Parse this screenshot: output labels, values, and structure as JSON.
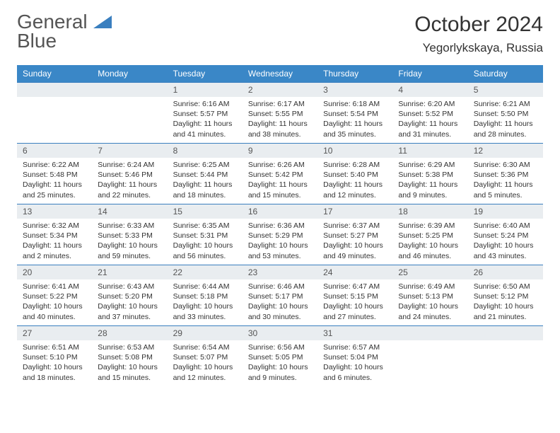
{
  "logo": {
    "text1": "General",
    "text2": "Blue"
  },
  "title": "October 2024",
  "location": "Yegorlykskaya, Russia",
  "colors": {
    "header_bg": "#3a87c7",
    "row_accent": "#3a7fbf",
    "daynum_bg": "#e9edf0",
    "text": "#333333",
    "logo_gray": "#555555"
  },
  "weekdays": [
    "Sunday",
    "Monday",
    "Tuesday",
    "Wednesday",
    "Thursday",
    "Friday",
    "Saturday"
  ],
  "weeks": [
    [
      null,
      null,
      {
        "d": "1",
        "sr": "6:16 AM",
        "ss": "5:57 PM",
        "dl": "11 hours and 41 minutes."
      },
      {
        "d": "2",
        "sr": "6:17 AM",
        "ss": "5:55 PM",
        "dl": "11 hours and 38 minutes."
      },
      {
        "d": "3",
        "sr": "6:18 AM",
        "ss": "5:54 PM",
        "dl": "11 hours and 35 minutes."
      },
      {
        "d": "4",
        "sr": "6:20 AM",
        "ss": "5:52 PM",
        "dl": "11 hours and 31 minutes."
      },
      {
        "d": "5",
        "sr": "6:21 AM",
        "ss": "5:50 PM",
        "dl": "11 hours and 28 minutes."
      }
    ],
    [
      {
        "d": "6",
        "sr": "6:22 AM",
        "ss": "5:48 PM",
        "dl": "11 hours and 25 minutes."
      },
      {
        "d": "7",
        "sr": "6:24 AM",
        "ss": "5:46 PM",
        "dl": "11 hours and 22 minutes."
      },
      {
        "d": "8",
        "sr": "6:25 AM",
        "ss": "5:44 PM",
        "dl": "11 hours and 18 minutes."
      },
      {
        "d": "9",
        "sr": "6:26 AM",
        "ss": "5:42 PM",
        "dl": "11 hours and 15 minutes."
      },
      {
        "d": "10",
        "sr": "6:28 AM",
        "ss": "5:40 PM",
        "dl": "11 hours and 12 minutes."
      },
      {
        "d": "11",
        "sr": "6:29 AM",
        "ss": "5:38 PM",
        "dl": "11 hours and 9 minutes."
      },
      {
        "d": "12",
        "sr": "6:30 AM",
        "ss": "5:36 PM",
        "dl": "11 hours and 5 minutes."
      }
    ],
    [
      {
        "d": "13",
        "sr": "6:32 AM",
        "ss": "5:34 PM",
        "dl": "11 hours and 2 minutes."
      },
      {
        "d": "14",
        "sr": "6:33 AM",
        "ss": "5:33 PM",
        "dl": "10 hours and 59 minutes."
      },
      {
        "d": "15",
        "sr": "6:35 AM",
        "ss": "5:31 PM",
        "dl": "10 hours and 56 minutes."
      },
      {
        "d": "16",
        "sr": "6:36 AM",
        "ss": "5:29 PM",
        "dl": "10 hours and 53 minutes."
      },
      {
        "d": "17",
        "sr": "6:37 AM",
        "ss": "5:27 PM",
        "dl": "10 hours and 49 minutes."
      },
      {
        "d": "18",
        "sr": "6:39 AM",
        "ss": "5:25 PM",
        "dl": "10 hours and 46 minutes."
      },
      {
        "d": "19",
        "sr": "6:40 AM",
        "ss": "5:24 PM",
        "dl": "10 hours and 43 minutes."
      }
    ],
    [
      {
        "d": "20",
        "sr": "6:41 AM",
        "ss": "5:22 PM",
        "dl": "10 hours and 40 minutes."
      },
      {
        "d": "21",
        "sr": "6:43 AM",
        "ss": "5:20 PM",
        "dl": "10 hours and 37 minutes."
      },
      {
        "d": "22",
        "sr": "6:44 AM",
        "ss": "5:18 PM",
        "dl": "10 hours and 33 minutes."
      },
      {
        "d": "23",
        "sr": "6:46 AM",
        "ss": "5:17 PM",
        "dl": "10 hours and 30 minutes."
      },
      {
        "d": "24",
        "sr": "6:47 AM",
        "ss": "5:15 PM",
        "dl": "10 hours and 27 minutes."
      },
      {
        "d": "25",
        "sr": "6:49 AM",
        "ss": "5:13 PM",
        "dl": "10 hours and 24 minutes."
      },
      {
        "d": "26",
        "sr": "6:50 AM",
        "ss": "5:12 PM",
        "dl": "10 hours and 21 minutes."
      }
    ],
    [
      {
        "d": "27",
        "sr": "6:51 AM",
        "ss": "5:10 PM",
        "dl": "10 hours and 18 minutes."
      },
      {
        "d": "28",
        "sr": "6:53 AM",
        "ss": "5:08 PM",
        "dl": "10 hours and 15 minutes."
      },
      {
        "d": "29",
        "sr": "6:54 AM",
        "ss": "5:07 PM",
        "dl": "10 hours and 12 minutes."
      },
      {
        "d": "30",
        "sr": "6:56 AM",
        "ss": "5:05 PM",
        "dl": "10 hours and 9 minutes."
      },
      {
        "d": "31",
        "sr": "6:57 AM",
        "ss": "5:04 PM",
        "dl": "10 hours and 6 minutes."
      },
      null,
      null
    ]
  ],
  "labels": {
    "sunrise": "Sunrise:",
    "sunset": "Sunset:",
    "daylight": "Daylight:"
  }
}
